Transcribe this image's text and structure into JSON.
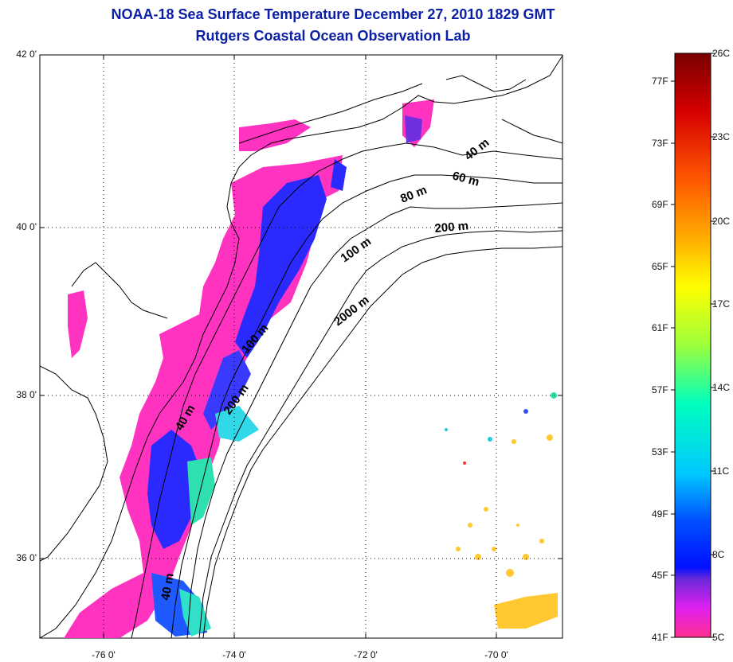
{
  "header": {
    "title": "NOAA-18 Sea Surface Temperature December 27, 2010 1829 GMT",
    "subtitle": "Rutgers Coastal Ocean Observation Lab"
  },
  "map": {
    "lat_ticks": [
      {
        "value": 42,
        "label": "42 0'"
      },
      {
        "value": 40,
        "label": "40 0'"
      },
      {
        "value": 38,
        "label": "38 0'"
      },
      {
        "value": 36,
        "label": "36 0'"
      }
    ],
    "lon_ticks": [
      {
        "value": -76,
        "label": "-76 0'"
      },
      {
        "value": -74,
        "label": "-74 0'"
      },
      {
        "value": -72,
        "label": "-72 0'"
      },
      {
        "value": -70,
        "label": "-70 0'"
      }
    ],
    "lat_range": [
      35,
      42
    ],
    "lon_range": [
      -77,
      -69
    ],
    "depth_contour_labels": [
      "40 m",
      "60 m",
      "80 m",
      "200 m",
      "100 m",
      "2000 m",
      "100 m",
      "40 m",
      "200 m",
      "40 m"
    ]
  },
  "colorbar": {
    "fahrenheit_labels": [
      "77F",
      "73F",
      "69F",
      "65F",
      "61F",
      "57F",
      "53F",
      "49F",
      "45F",
      "41F"
    ],
    "celsius_labels": [
      "26C",
      "23C",
      "20C",
      "17C",
      "14C",
      "11C",
      "8C",
      "5C"
    ],
    "colors": [
      "#7a0000",
      "#d60000",
      "#ff5a00",
      "#ffae00",
      "#ffff00",
      "#a8ff30",
      "#00ffb0",
      "#00d0ff",
      "#0050ff",
      "#0010ff",
      "#7a20d0",
      "#ff20ff",
      "#ff30a0"
    ]
  }
}
